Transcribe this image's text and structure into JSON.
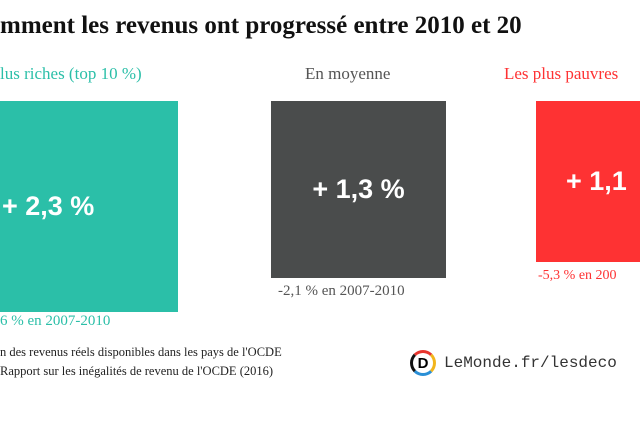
{
  "title": "mment les revenus ont progressé entre 2010 et 20",
  "colors": {
    "rich": "#2bbfa8",
    "average": "#4a4c4c",
    "poor": "#fe3233"
  },
  "chart_data": {
    "type": "table",
    "title": "mment les revenus ont progressé entre 2010 et 20",
    "groups": [
      {
        "label": "lus riches (top 10 %)",
        "value_label": "+ 2,3 %",
        "value": 2.3,
        "previous_label": "6 % en 2007-2010"
      },
      {
        "label": "En moyenne",
        "value_label": "+ 1,3 %",
        "value": 1.3,
        "previous_label": "-2,1 % en 2007-2010",
        "previous": -2.1
      },
      {
        "label": "Les plus pauvres",
        "value_label": "+ 1,1",
        "value": 1.1,
        "previous_label": "-5,3 % en 200",
        "previous": -5.3
      }
    ]
  },
  "footnote": [
    "n des revenus réels disponibles dans les pays de l'OCDE",
    "Rapport sur les inégalités de revenu de l'OCDE (2016)"
  ],
  "logo": {
    "letter": "D",
    "text": "LeMonde.fr/lesdeco"
  }
}
